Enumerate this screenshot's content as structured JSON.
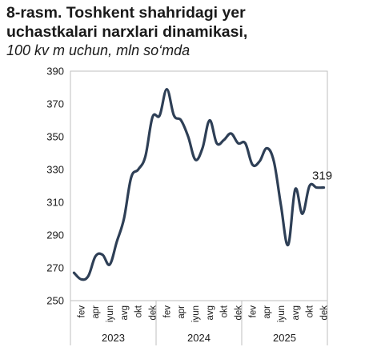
{
  "title": {
    "line1": "8-rasm. Toshkent shahridagi yer",
    "line2": "uchastkalari narxlari dinamikasi,",
    "line3": "100 kv m uchun, mln so‘mda"
  },
  "colors": {
    "line": "#2e3f56",
    "grid": "#d9d9d9",
    "axis": "#bfbfbf"
  },
  "chart_data": {
    "type": "line",
    "title": "8-rasm. Toshkent shahridagi yer uchastkalari narxlari dinamikasi, 100 kv m uchun, mln so‘mda",
    "xlabel": "",
    "ylabel": "",
    "ylim": [
      250,
      390
    ],
    "yticks": [
      250,
      270,
      290,
      310,
      330,
      350,
      370,
      390
    ],
    "grid": false,
    "x_month_labels": [
      "fev",
      "apr",
      "iyun",
      "avg",
      "okt",
      "dek",
      "fev",
      "apr",
      "iyun",
      "avg",
      "okt",
      "dek",
      "fev",
      "apr",
      "iyun",
      "avg",
      "okt",
      "dek"
    ],
    "x_year_labels": [
      "2023",
      "2024",
      "2025"
    ],
    "x": [
      "2023-01",
      "2023-02",
      "2023-03",
      "2023-04",
      "2023-05",
      "2023-06",
      "2023-07",
      "2023-08",
      "2023-09",
      "2023-10",
      "2023-11",
      "2023-12",
      "2024-01",
      "2024-02",
      "2024-03",
      "2024-04",
      "2024-05",
      "2024-06",
      "2024-07",
      "2024-08",
      "2024-09",
      "2024-10",
      "2024-11",
      "2024-12",
      "2025-01",
      "2025-02",
      "2025-03",
      "2025-04",
      "2025-05",
      "2025-06",
      "2025-07",
      "2025-08",
      "2025-09",
      "2025-10",
      "2025-11",
      "2025-12"
    ],
    "series": [
      {
        "values": [
          267,
          263,
          265,
          277,
          278,
          272,
          286,
          300,
          325,
          330,
          338,
          362,
          363,
          379,
          363,
          360,
          350,
          336,
          343,
          360,
          346,
          348,
          352,
          346,
          346,
          333,
          335,
          343,
          335,
          308,
          284,
          318,
          303,
          320,
          319,
          319
        ]
      }
    ],
    "data_labels": [
      {
        "x": "2025-12",
        "value": "319"
      }
    ]
  }
}
